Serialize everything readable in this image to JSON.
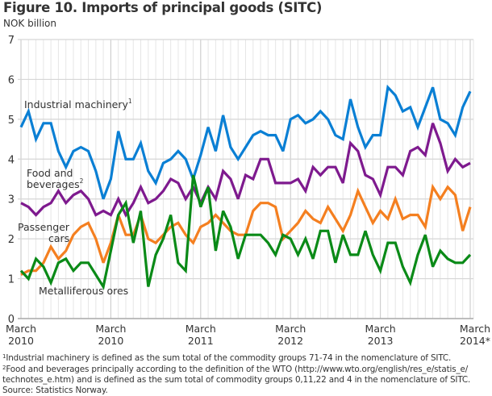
{
  "figure": {
    "title": "Figure 10. Imports of principal goods (SITC)",
    "y_unit": "NOK billion"
  },
  "footnotes": [
    {
      "marker": "1",
      "text": "Industrial machinery is defined as the sum total of the commodity groups 71-74 in the nomenclature of SITC."
    },
    {
      "marker": "2",
      "text": "Food and beverages principally according to the definition of the WTO (http://www.wto.org/english/res_e/statis_e/"
    },
    {
      "marker": "",
      "text": "technotes_e.htm) and is defined as the sum total of commodity groups 0,11,22 and 4 in the nomenclature of SITC."
    }
  ],
  "source": "Source: Statistics Norway.",
  "chart_data": {
    "type": "line",
    "title": "Figure 10. Imports of principal goods (SITC)",
    "ylabel": "NOK billion",
    "xlabel": "",
    "ylim": [
      0,
      7
    ],
    "yticks": [
      "0",
      "1",
      "2",
      "3",
      "4",
      "5",
      "6",
      "7"
    ],
    "xtick_labels": [
      {
        "line1": "March",
        "line2": "2010",
        "index": 0
      },
      {
        "line1": "March",
        "line2": "2010",
        "index": 12
      },
      {
        "line1": "March",
        "line2": "2011",
        "index": 24
      },
      {
        "line1": "March",
        "line2": "2012",
        "index": 36
      },
      {
        "line1": "March",
        "line2": "2013",
        "index": 48
      },
      {
        "line1": "March",
        "line2": "2014*",
        "index": 60
      }
    ],
    "n_points": 61,
    "grid": true,
    "series": [
      {
        "name": "Industrial machinery",
        "sup": "1",
        "color": "#0a7fd4",
        "label_lines": [
          "Industrial machinery"
        ],
        "values": [
          4.8,
          5.2,
          4.5,
          4.9,
          4.9,
          4.2,
          3.8,
          4.2,
          4.3,
          4.2,
          3.7,
          3.0,
          3.5,
          4.7,
          4.0,
          4.0,
          4.4,
          3.7,
          3.4,
          3.9,
          4.0,
          4.2,
          4.0,
          3.5,
          4.1,
          4.8,
          4.2,
          5.1,
          4.3,
          4.0,
          4.3,
          4.6,
          4.7,
          4.6,
          4.6,
          4.2,
          5.0,
          5.1,
          4.9,
          5.0,
          5.2,
          5.0,
          4.6,
          4.5,
          5.5,
          4.8,
          4.3,
          4.6,
          4.6,
          5.8,
          5.6,
          5.2,
          5.3,
          4.8,
          5.3,
          5.8,
          5.0,
          4.9,
          4.6,
          5.3,
          5.7
        ]
      },
      {
        "name": "Food and beverages",
        "sup": "2",
        "color": "#7e1a8e",
        "label_lines": [
          "Food and",
          "beverages"
        ],
        "values": [
          2.9,
          2.8,
          2.6,
          2.8,
          2.9,
          3.2,
          2.9,
          3.1,
          3.2,
          3.0,
          2.6,
          2.7,
          2.6,
          3.0,
          2.6,
          2.9,
          3.3,
          2.9,
          3.0,
          3.2,
          3.5,
          3.4,
          3.0,
          3.3,
          2.9,
          3.3,
          3.0,
          3.7,
          3.5,
          3.0,
          3.6,
          3.5,
          4.0,
          4.0,
          3.4,
          3.4,
          3.4,
          3.5,
          3.2,
          3.8,
          3.6,
          3.8,
          3.8,
          3.4,
          4.4,
          4.2,
          3.6,
          3.5,
          3.1,
          3.8,
          3.8,
          3.6,
          4.2,
          4.3,
          4.1,
          4.9,
          4.4,
          3.7,
          4.0,
          3.8,
          3.9
        ]
      },
      {
        "name": "Passenger cars",
        "sup": "",
        "color": "#f47f20",
        "label_lines": [
          "Passenger",
          "cars"
        ],
        "values": [
          1.1,
          1.2,
          1.2,
          1.4,
          1.8,
          1.5,
          1.7,
          2.1,
          2.3,
          2.4,
          2.0,
          1.4,
          1.9,
          2.6,
          2.1,
          2.1,
          2.6,
          2.0,
          1.9,
          2.1,
          2.3,
          2.4,
          2.1,
          1.9,
          2.3,
          2.4,
          2.6,
          2.4,
          2.2,
          2.1,
          2.1,
          2.7,
          2.9,
          2.9,
          2.8,
          2.0,
          2.2,
          2.4,
          2.7,
          2.5,
          2.4,
          2.8,
          2.5,
          2.2,
          2.6,
          3.2,
          2.8,
          2.4,
          2.7,
          2.5,
          3.0,
          2.5,
          2.6,
          2.6,
          2.3,
          3.3,
          3.0,
          3.3,
          3.1,
          2.2,
          2.8
        ]
      },
      {
        "name": "Metalliferous ores",
        "sup": "",
        "color": "#0a8a17",
        "label_lines": [
          "Metalliferous ores"
        ],
        "values": [
          1.2,
          1.0,
          1.5,
          1.3,
          0.9,
          1.4,
          1.5,
          1.2,
          1.4,
          1.4,
          1.1,
          0.8,
          1.7,
          2.6,
          2.9,
          1.9,
          2.7,
          0.8,
          1.6,
          2.0,
          2.6,
          1.4,
          1.2,
          3.6,
          2.8,
          3.3,
          1.7,
          2.7,
          2.3,
          1.5,
          2.1,
          2.1,
          2.1,
          1.9,
          1.6,
          2.1,
          2.0,
          1.6,
          2.0,
          1.5,
          2.2,
          2.2,
          1.4,
          2.1,
          1.6,
          1.6,
          2.2,
          1.6,
          1.2,
          1.9,
          1.9,
          1.3,
          0.9,
          1.6,
          2.1,
          1.3,
          1.7,
          1.5,
          1.4,
          1.4,
          1.6
        ]
      }
    ]
  }
}
